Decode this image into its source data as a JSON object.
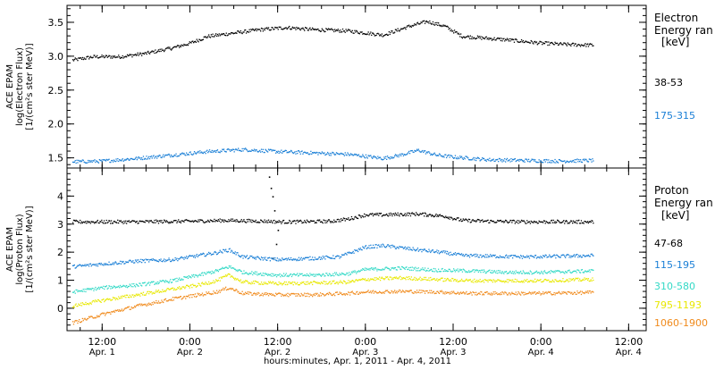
{
  "xaxis": {
    "title": "hours:minutes, Apr.  1, 2011 - Apr.  4, 2011",
    "ticks": [
      {
        "x": 0.5,
        "time": "12:00",
        "date": "Apr.  1"
      },
      {
        "x": 1.0,
        "time": "0:00",
        "date": "Apr.  2"
      },
      {
        "x": 1.5,
        "time": "12:00",
        "date": "Apr.  2"
      },
      {
        "x": 2.0,
        "time": "0:00",
        "date": "Apr.  3"
      },
      {
        "x": 2.5,
        "time": "12:00",
        "date": "Apr.  3"
      },
      {
        "x": 3.0,
        "time": "0:00",
        "date": "Apr.  4"
      },
      {
        "x": 3.5,
        "time": "12:00",
        "date": "Apr.  4"
      }
    ],
    "units_note": "days since Apr. 1 00:00"
  },
  "chart_data": [
    {
      "type": "scatter",
      "panel": "electron",
      "ylabel_lines": [
        "ACE EPAM",
        "log(Electron Flux)",
        "[1/(cm²s ster MeV)]"
      ],
      "xlim": [
        0.3,
        3.6
      ],
      "ylim": [
        1.35,
        3.75
      ],
      "yticks": [
        1.5,
        2.0,
        2.5,
        3.0,
        3.5
      ],
      "ytick_labels": [
        "1.5",
        "2.0",
        "2.5",
        "3.0",
        "3.5"
      ],
      "legend_title": [
        "Electron",
        "Energy ran",
        "[keV]"
      ],
      "series": [
        {
          "name": "38-53",
          "color": "#000000",
          "x": [
            0.33,
            0.45,
            0.6,
            0.75,
            0.9,
            1.0,
            1.1,
            1.25,
            1.4,
            1.55,
            1.7,
            1.9,
            2.1,
            2.25,
            2.35,
            2.45,
            2.55,
            2.65,
            2.8,
            3.0,
            3.15,
            3.3
          ],
          "y": [
            2.95,
            3.0,
            3.0,
            3.05,
            3.13,
            3.2,
            3.3,
            3.35,
            3.4,
            3.43,
            3.4,
            3.38,
            3.32,
            3.45,
            3.52,
            3.45,
            3.3,
            3.28,
            3.25,
            3.2,
            3.18,
            3.17
          ]
        },
        {
          "name": "175-315",
          "color": "#1a7fd6",
          "x": [
            0.33,
            0.5,
            0.7,
            0.9,
            1.1,
            1.3,
            1.5,
            1.7,
            1.9,
            2.1,
            2.2,
            2.3,
            2.4,
            2.5,
            2.7,
            2.9,
            3.1,
            3.3
          ],
          "y": [
            1.45,
            1.46,
            1.5,
            1.55,
            1.6,
            1.63,
            1.6,
            1.58,
            1.56,
            1.5,
            1.55,
            1.62,
            1.55,
            1.52,
            1.48,
            1.47,
            1.46,
            1.47
          ]
        }
      ]
    },
    {
      "type": "scatter",
      "panel": "proton",
      "ylabel_lines": [
        "ACE EPAM",
        "log(Proton Flux)",
        "[1/(cm²s ster MeV)]"
      ],
      "xlim": [
        0.3,
        3.6
      ],
      "ylim": [
        -0.8,
        5.0
      ],
      "yticks": [
        0,
        1,
        2,
        3,
        4
      ],
      "ytick_labels": [
        "0",
        "1",
        "2",
        "3",
        "4"
      ],
      "legend_title": [
        "Proton",
        "Energy ran",
        "[keV]"
      ],
      "series": [
        {
          "name": "47-68",
          "color": "#000000",
          "x": [
            0.33,
            0.7,
            1.0,
            1.2,
            1.35,
            1.45,
            1.5,
            1.6,
            1.8,
            1.9,
            2.0,
            2.1,
            2.3,
            2.45,
            2.55,
            2.7,
            2.9,
            3.1,
            3.3
          ],
          "y": [
            3.1,
            3.1,
            3.12,
            3.15,
            3.13,
            3.12,
            3.1,
            3.1,
            3.12,
            3.2,
            3.35,
            3.35,
            3.38,
            3.3,
            3.15,
            3.12,
            3.1,
            3.1,
            3.1
          ],
          "spike": {
            "x": [
              1.45,
              1.46,
              1.47,
              1.48,
              1.5,
              1.49,
              1.47
            ],
            "y": [
              4.7,
              4.3,
              4.0,
              3.5,
              2.8,
              2.3,
              1.8
            ]
          }
        },
        {
          "name": "115-195",
          "color": "#1a7fd6",
          "x": [
            0.33,
            0.5,
            0.7,
            0.9,
            1.05,
            1.15,
            1.22,
            1.3,
            1.5,
            1.7,
            1.85,
            2.0,
            2.1,
            2.3,
            2.45,
            2.55,
            2.7,
            2.9,
            3.1,
            3.3
          ],
          "y": [
            1.5,
            1.6,
            1.7,
            1.75,
            1.9,
            2.0,
            2.1,
            1.85,
            1.75,
            1.8,
            1.85,
            2.2,
            2.25,
            2.1,
            2.0,
            1.9,
            1.88,
            1.85,
            1.87,
            1.9
          ]
        },
        {
          "name": "310-580",
          "color": "#33d9c6",
          "x": [
            0.33,
            0.5,
            0.7,
            0.9,
            1.05,
            1.15,
            1.22,
            1.3,
            1.5,
            1.7,
            1.9,
            2.0,
            2.2,
            2.4,
            2.6,
            2.8,
            3.0,
            3.3
          ],
          "y": [
            0.6,
            0.75,
            0.85,
            1.0,
            1.2,
            1.35,
            1.5,
            1.3,
            1.2,
            1.2,
            1.25,
            1.4,
            1.45,
            1.38,
            1.35,
            1.3,
            1.3,
            1.35
          ]
        },
        {
          "name": "795-1193",
          "color": "#e8e800",
          "x": [
            0.33,
            0.5,
            0.7,
            0.9,
            1.05,
            1.15,
            1.22,
            1.3,
            1.5,
            1.7,
            1.9,
            2.0,
            2.2,
            2.4,
            2.6,
            2.8,
            3.0,
            3.3
          ],
          "y": [
            0.1,
            0.3,
            0.5,
            0.7,
            0.85,
            1.0,
            1.2,
            0.95,
            0.9,
            0.92,
            0.95,
            1.05,
            1.1,
            1.05,
            1.0,
            1.0,
            1.0,
            1.05
          ]
        },
        {
          "name": "1060-1900",
          "color": "#f08a1c",
          "x": [
            0.33,
            0.5,
            0.7,
            0.9,
            1.05,
            1.15,
            1.22,
            1.3,
            1.5,
            1.7,
            1.9,
            2.0,
            2.2,
            2.4,
            2.6,
            2.8,
            3.0,
            3.3
          ],
          "y": [
            -0.5,
            -0.2,
            0.1,
            0.35,
            0.5,
            0.6,
            0.75,
            0.55,
            0.5,
            0.5,
            0.55,
            0.6,
            0.62,
            0.6,
            0.55,
            0.55,
            0.55,
            0.58
          ]
        }
      ]
    }
  ]
}
